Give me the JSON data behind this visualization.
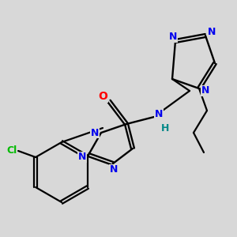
{
  "background_color": "#d8d8d8",
  "bond_color": "#000000",
  "atom_colors": {
    "N": "#0000ee",
    "O": "#ff0000",
    "Cl": "#00bb00",
    "H": "#008888",
    "C": "#000000"
  },
  "figsize": [
    3.0,
    3.0
  ],
  "dpi": 100
}
